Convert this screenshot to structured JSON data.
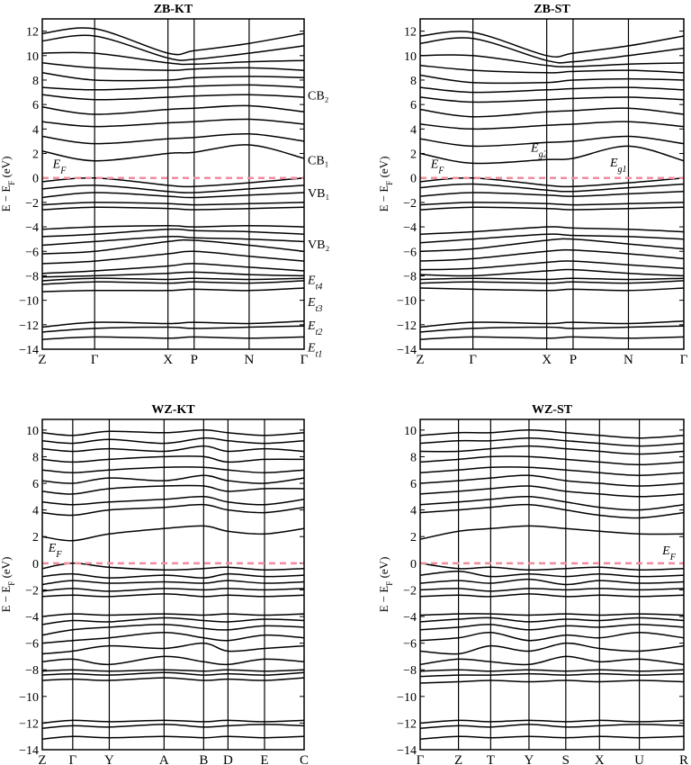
{
  "figure_type": "electronic band structure, 2x2 panels",
  "colors": {
    "bands": "#000000",
    "fermi_level": "#f08c9c",
    "frame": "#000000",
    "background": "#ffffff"
  },
  "chart_data": [
    {
      "type": "line",
      "title": "ZB-KT",
      "ylabel": "E − E_F (eV)",
      "ylim": [
        -14,
        13
      ],
      "yticks": [
        12,
        10,
        8,
        6,
        4,
        2,
        0,
        -2,
        -4,
        -6,
        -8,
        -10,
        -12,
        -14
      ],
      "kpoints": [
        "Z",
        "Γ",
        "X",
        "P",
        "N",
        "Γ"
      ],
      "kpoint_positions": [
        0,
        1,
        2.4,
        2.9,
        3.95,
        5
      ],
      "fermi_level": 0,
      "annotations": [
        {
          "text": "E_F",
          "x": 0.2,
          "y": 1.2
        },
        {
          "text": "CB₂",
          "x": 5.05,
          "y": 6.8,
          "side": "right"
        },
        {
          "text": "CB₁",
          "x": 5.05,
          "y": 1.5,
          "side": "right"
        },
        {
          "text": "VB₁",
          "x": 5.05,
          "y": -1.2,
          "side": "right"
        },
        {
          "text": "VB₂",
          "x": 5.05,
          "y": -5.4,
          "side": "right"
        },
        {
          "text": "E_t4",
          "x": 5.05,
          "y": -8.3,
          "side": "right"
        },
        {
          "text": "E_t3",
          "x": 5.05,
          "y": -10.1,
          "side": "right"
        },
        {
          "text": "E_t2",
          "x": 5.05,
          "y": -12.0,
          "side": "right"
        },
        {
          "text": "E_t1",
          "x": 5.05,
          "y": -13.8,
          "side": "right"
        }
      ],
      "bands": [
        [
          -13.2,
          -13.0,
          -13.1,
          -13.0,
          -13.1,
          -13.0
        ],
        [
          -12.6,
          -12.3,
          -12.2,
          -12.3,
          -12.2,
          -12.1
        ],
        [
          -12.2,
          -11.8,
          -11.9,
          -11.8,
          -11.9,
          -11.7
        ],
        [
          -9.3,
          -9.2,
          -9.2,
          -9.1,
          -9.2,
          -9.0
        ],
        [
          -8.7,
          -8.5,
          -8.6,
          -8.5,
          -8.6,
          -8.4
        ],
        [
          -8.4,
          -8.2,
          -8.3,
          -8.2,
          -8.3,
          -8.2
        ],
        [
          -8.1,
          -8.0,
          -7.8,
          -7.7,
          -7.9,
          -8.0
        ],
        [
          -7.8,
          -7.6,
          -7.2,
          -7.0,
          -7.3,
          -7.6
        ],
        [
          -7.0,
          -6.8,
          -6.2,
          -6.0,
          -6.4,
          -6.8
        ],
        [
          -6.2,
          -6.0,
          -5.2,
          -5.1,
          -5.5,
          -6.0
        ],
        [
          -5.5,
          -5.2,
          -4.8,
          -4.9,
          -5.0,
          -5.2
        ],
        [
          -4.8,
          -4.6,
          -4.2,
          -4.3,
          -4.4,
          -4.6
        ],
        [
          -4.2,
          -4.0,
          -3.9,
          -4.0,
          -3.9,
          -4.0
        ],
        [
          -2.6,
          -2.4,
          -2.5,
          -2.6,
          -2.5,
          -2.4
        ],
        [
          -2.2,
          -2.0,
          -2.1,
          -2.2,
          -2.1,
          -2.0
        ],
        [
          -1.6,
          -1.2,
          -1.5,
          -1.6,
          -1.4,
          -1.2
        ],
        [
          -0.9,
          -0.6,
          -1.1,
          -1.2,
          -0.9,
          -0.6
        ],
        [
          -0.3,
          0.0,
          -0.6,
          -0.7,
          -0.4,
          0.0
        ],
        [
          2.2,
          1.4,
          2.0,
          2.1,
          2.7,
          1.6
        ],
        [
          3.4,
          2.8,
          3.2,
          3.3,
          3.6,
          3.0
        ],
        [
          4.6,
          4.2,
          4.5,
          4.6,
          4.8,
          4.4
        ],
        [
          5.8,
          5.2,
          5.6,
          5.7,
          5.9,
          5.4
        ],
        [
          6.8,
          6.4,
          6.6,
          6.7,
          6.8,
          6.6
        ],
        [
          7.4,
          7.2,
          7.4,
          7.5,
          7.6,
          7.4
        ],
        [
          8.6,
          8.0,
          8.0,
          8.2,
          8.3,
          8.2
        ],
        [
          9.4,
          9.0,
          8.8,
          8.9,
          9.0,
          8.8
        ],
        [
          10.2,
          10.2,
          9.4,
          9.3,
          9.5,
          9.6
        ],
        [
          11.2,
          11.6,
          9.8,
          9.7,
          10.2,
          10.8
        ],
        [
          11.8,
          12.2,
          10.2,
          10.4,
          11.0,
          11.8
        ]
      ]
    },
    {
      "type": "line",
      "title": "ZB-ST",
      "ylabel": "E − E_F (eV)",
      "ylim": [
        -14,
        13
      ],
      "yticks": [
        12,
        10,
        8,
        6,
        4,
        2,
        0,
        -2,
        -4,
        -6,
        -8,
        -10,
        -12,
        -14
      ],
      "kpoints": [
        "Z",
        "Γ",
        "X",
        "P",
        "N",
        "Γ"
      ],
      "kpoint_positions": [
        0,
        1,
        2.4,
        2.9,
        3.95,
        5
      ],
      "fermi_level": 0,
      "annotations": [
        {
          "text": "E_F",
          "x": 0.2,
          "y": 1.2
        },
        {
          "text": "E_g2",
          "x": 2.1,
          "y": 2.5
        },
        {
          "text": "E_g1",
          "x": 3.6,
          "y": 1.3
        }
      ],
      "bands": [
        [
          -13.2,
          -13.0,
          -13.1,
          -13.0,
          -13.1,
          -13.0
        ],
        [
          -12.6,
          -12.3,
          -12.2,
          -12.3,
          -12.2,
          -12.1
        ],
        [
          -12.2,
          -11.8,
          -11.9,
          -11.8,
          -11.9,
          -11.7
        ],
        [
          -9.0,
          -9.1,
          -9.2,
          -9.1,
          -9.2,
          -9.0
        ],
        [
          -8.6,
          -8.5,
          -8.6,
          -8.5,
          -8.6,
          -8.4
        ],
        [
          -8.3,
          -8.2,
          -8.3,
          -8.2,
          -8.3,
          -8.2
        ],
        [
          -7.9,
          -8.0,
          -7.6,
          -7.5,
          -7.8,
          -8.0
        ],
        [
          -7.5,
          -7.4,
          -6.9,
          -6.8,
          -7.1,
          -7.4
        ],
        [
          -6.8,
          -6.6,
          -6.0,
          -5.9,
          -6.2,
          -6.6
        ],
        [
          -6.0,
          -5.8,
          -5.1,
          -5.0,
          -5.4,
          -5.8
        ],
        [
          -5.3,
          -5.0,
          -4.6,
          -4.7,
          -4.8,
          -5.0
        ],
        [
          -4.6,
          -4.4,
          -4.0,
          -4.1,
          -4.2,
          -4.4
        ],
        [
          -2.6,
          -2.4,
          -2.5,
          -2.6,
          -2.5,
          -2.4
        ],
        [
          -2.2,
          -2.0,
          -2.1,
          -2.2,
          -2.1,
          -2.0
        ],
        [
          -1.5,
          -1.2,
          -1.4,
          -1.5,
          -1.3,
          -1.1
        ],
        [
          -0.8,
          -0.5,
          -1.0,
          -1.1,
          -0.8,
          -0.5
        ],
        [
          -0.3,
          0.0,
          -0.6,
          -0.7,
          -0.4,
          0.0
        ],
        [
          2.0,
          1.2,
          1.5,
          1.6,
          2.6,
          1.4
        ],
        [
          3.2,
          2.6,
          2.9,
          3.0,
          3.4,
          2.8
        ],
        [
          4.4,
          4.0,
          4.3,
          4.4,
          4.6,
          4.2
        ],
        [
          5.6,
          5.0,
          5.4,
          5.5,
          5.7,
          5.2
        ],
        [
          6.6,
          6.2,
          6.4,
          6.5,
          6.6,
          6.4
        ],
        [
          7.4,
          7.0,
          7.2,
          7.3,
          7.4,
          7.2
        ],
        [
          8.4,
          7.8,
          7.8,
          8.0,
          8.1,
          8.0
        ],
        [
          9.2,
          8.8,
          8.6,
          8.7,
          8.8,
          8.6
        ],
        [
          10.0,
          10.0,
          9.2,
          9.1,
          9.3,
          9.4
        ],
        [
          11.0,
          11.4,
          9.6,
          9.5,
          10.0,
          10.6
        ],
        [
          11.6,
          11.9,
          10.0,
          10.2,
          10.8,
          11.6
        ]
      ]
    },
    {
      "type": "line",
      "title": "WZ-KT",
      "ylabel": "E − E_F (eV)",
      "ylim": [
        -14,
        10.8
      ],
      "yticks": [
        10,
        8,
        6,
        4,
        2,
        0,
        -2,
        -4,
        -6,
        -8,
        -10,
        -12,
        -14
      ],
      "kpoints": [
        "Z",
        "Γ",
        "Y",
        "A",
        "B",
        "D",
        "E",
        "C"
      ],
      "kpoint_positions": [
        0,
        1,
        2.2,
        4,
        5.3,
        6.1,
        7.3,
        8.6
      ],
      "fermi_level": 0,
      "annotations": [
        {
          "text": "E_F",
          "x": 0.2,
          "y": 1.2
        }
      ],
      "bands": [
        [
          -13.2,
          -13.0,
          -13.1,
          -13.0,
          -13.1,
          -13.0,
          -13.1,
          -13.0
        ],
        [
          -12.4,
          -12.2,
          -12.3,
          -12.1,
          -12.3,
          -12.2,
          -12.1,
          -12.2
        ],
        [
          -12.0,
          -11.8,
          -11.9,
          -11.8,
          -11.9,
          -11.8,
          -11.9,
          -11.8
        ],
        [
          -8.8,
          -8.7,
          -8.8,
          -8.6,
          -8.8,
          -8.7,
          -8.8,
          -8.6
        ],
        [
          -8.4,
          -8.3,
          -8.4,
          -8.2,
          -8.4,
          -8.3,
          -8.4,
          -8.2
        ],
        [
          -8.1,
          -8.0,
          -8.1,
          -8.0,
          -8.1,
          -8.0,
          -8.1,
          -8.0
        ],
        [
          -7.4,
          -7.2,
          -7.6,
          -7.0,
          -7.4,
          -7.6,
          -7.2,
          -7.4
        ],
        [
          -6.8,
          -6.6,
          -6.2,
          -6.4,
          -6.0,
          -6.6,
          -6.4,
          -6.2
        ],
        [
          -6.0,
          -5.8,
          -5.6,
          -5.2,
          -5.6,
          -5.8,
          -5.4,
          -5.6
        ],
        [
          -5.4,
          -5.0,
          -4.8,
          -4.6,
          -4.9,
          -5.0,
          -4.7,
          -4.8
        ],
        [
          -4.6,
          -4.3,
          -4.4,
          -4.1,
          -4.3,
          -4.4,
          -4.2,
          -4.3
        ],
        [
          -4.0,
          -3.8,
          -3.9,
          -3.8,
          -3.9,
          -3.8,
          -3.9,
          -3.8
        ],
        [
          -2.5,
          -2.4,
          -2.5,
          -2.3,
          -2.5,
          -2.4,
          -2.5,
          -2.4
        ],
        [
          -2.1,
          -1.9,
          -2.1,
          -1.9,
          -2.0,
          -1.9,
          -2.0,
          -1.9
        ],
        [
          -1.6,
          -1.3,
          -1.5,
          -1.4,
          -1.5,
          -1.3,
          -1.5,
          -1.4
        ],
        [
          -1.0,
          -0.8,
          -1.1,
          -0.9,
          -1.1,
          -0.8,
          -1.0,
          -0.9
        ],
        [
          -0.4,
          0.0,
          -0.3,
          -0.5,
          -0.4,
          -0.3,
          -0.5,
          -0.4
        ],
        [
          2.0,
          1.7,
          2.2,
          2.6,
          2.8,
          2.4,
          2.2,
          2.6
        ],
        [
          3.8,
          3.6,
          4.0,
          4.2,
          4.4,
          4.0,
          3.8,
          4.2
        ],
        [
          4.6,
          4.4,
          4.6,
          4.8,
          5.0,
          4.6,
          4.4,
          4.8
        ],
        [
          5.4,
          5.2,
          5.6,
          5.8,
          5.8,
          5.4,
          5.6,
          5.6
        ],
        [
          6.2,
          6.0,
          6.4,
          6.2,
          6.6,
          6.2,
          6.0,
          6.4
        ],
        [
          7.0,
          6.8,
          7.0,
          7.2,
          7.2,
          7.0,
          6.8,
          7.0
        ],
        [
          7.8,
          7.6,
          7.8,
          8.0,
          8.0,
          7.6,
          7.8,
          7.8
        ],
        [
          8.6,
          8.4,
          8.6,
          8.4,
          8.8,
          8.4,
          8.6,
          8.4
        ],
        [
          9.2,
          9.0,
          9.3,
          9.0,
          9.4,
          9.2,
          9.0,
          9.2
        ],
        [
          9.8,
          9.6,
          9.9,
          9.8,
          10.0,
          9.8,
          9.6,
          9.8
        ]
      ]
    },
    {
      "type": "line",
      "title": "WZ-ST",
      "ylabel": "E − E_F (eV)",
      "ylim": [
        -14,
        10.8
      ],
      "yticks": [
        10,
        8,
        6,
        4,
        2,
        0,
        -2,
        -4,
        -6,
        -8,
        -10,
        -12,
        -14
      ],
      "kpoints": [
        "Γ",
        "Z",
        "T",
        "Y",
        "S",
        "X",
        "U",
        "R"
      ],
      "kpoint_positions": [
        0,
        1.25,
        2.3,
        3.55,
        4.75,
        5.85,
        7.15,
        8.6
      ],
      "fermi_level": 0,
      "annotations": [
        {
          "text": "E_F",
          "x": 7.9,
          "y": 1.0
        }
      ],
      "bands": [
        [
          -13.2,
          -13.0,
          -13.1,
          -13.0,
          -13.1,
          -13.0,
          -13.1,
          -13.0
        ],
        [
          -12.4,
          -12.2,
          -12.3,
          -12.1,
          -12.3,
          -12.2,
          -12.1,
          -12.2
        ],
        [
          -12.0,
          -11.8,
          -11.9,
          -11.8,
          -11.9,
          -11.8,
          -11.9,
          -11.8
        ],
        [
          -9.0,
          -8.9,
          -8.8,
          -8.9,
          -8.8,
          -8.9,
          -8.8,
          -8.9
        ],
        [
          -8.5,
          -8.4,
          -8.4,
          -8.3,
          -8.4,
          -8.3,
          -8.4,
          -8.3
        ],
        [
          -8.1,
          -8.0,
          -8.1,
          -8.0,
          -8.1,
          -8.0,
          -8.1,
          -8.0
        ],
        [
          -7.6,
          -7.2,
          -7.4,
          -7.6,
          -7.0,
          -7.4,
          -7.2,
          -7.6
        ],
        [
          -6.6,
          -6.8,
          -6.2,
          -6.6,
          -6.0,
          -6.4,
          -6.6,
          -6.2
        ],
        [
          -5.8,
          -5.6,
          -5.2,
          -5.8,
          -5.4,
          -5.6,
          -5.2,
          -5.6
        ],
        [
          -5.0,
          -4.8,
          -4.6,
          -5.0,
          -4.7,
          -4.8,
          -4.6,
          -4.8
        ],
        [
          -4.4,
          -4.2,
          -4.1,
          -4.4,
          -4.2,
          -4.3,
          -4.1,
          -4.3
        ],
        [
          -3.9,
          -3.8,
          -3.8,
          -3.9,
          -3.8,
          -3.9,
          -3.8,
          -3.9
        ],
        [
          -2.5,
          -2.4,
          -2.5,
          -2.3,
          -2.5,
          -2.4,
          -2.5,
          -2.4
        ],
        [
          -2.0,
          -1.9,
          -2.1,
          -1.9,
          -2.0,
          -1.9,
          -2.0,
          -1.9
        ],
        [
          -1.5,
          -1.3,
          -1.5,
          -1.2,
          -1.6,
          -1.3,
          -1.5,
          -1.4
        ],
        [
          -0.9,
          -0.6,
          -1.0,
          -0.8,
          -1.0,
          -0.8,
          -1.0,
          -0.9
        ],
        [
          0.0,
          -0.4,
          -0.3,
          -0.5,
          -0.4,
          -0.3,
          -0.5,
          -0.4
        ],
        [
          1.8,
          2.4,
          2.6,
          2.8,
          2.6,
          2.4,
          2.2,
          2.2
        ],
        [
          3.8,
          4.0,
          4.2,
          4.4,
          4.0,
          3.6,
          3.4,
          3.8
        ],
        [
          4.4,
          4.6,
          4.8,
          5.0,
          4.6,
          4.2,
          4.0,
          4.4
        ],
        [
          5.2,
          5.4,
          5.6,
          5.8,
          5.4,
          5.2,
          5.0,
          5.2
        ],
        [
          6.0,
          6.2,
          6.4,
          6.6,
          6.2,
          6.0,
          5.8,
          6.0
        ],
        [
          6.8,
          7.0,
          7.2,
          7.2,
          7.0,
          6.8,
          6.6,
          6.8
        ],
        [
          7.6,
          7.8,
          8.0,
          8.0,
          7.8,
          7.6,
          7.4,
          7.6
        ],
        [
          8.4,
          8.4,
          8.6,
          8.8,
          8.6,
          8.4,
          8.2,
          8.4
        ],
        [
          9.0,
          9.2,
          9.2,
          9.4,
          9.2,
          9.0,
          8.8,
          9.0
        ],
        [
          9.6,
          9.8,
          9.8,
          10.0,
          9.8,
          9.6,
          9.4,
          9.6
        ]
      ]
    }
  ]
}
